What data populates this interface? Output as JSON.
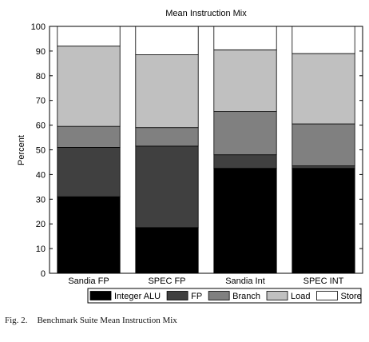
{
  "chart_data": {
    "type": "bar",
    "stacked": true,
    "title": "Mean Instruction Mix",
    "xlabel": "",
    "ylabel": "Percent",
    "ylim": [
      0,
      100
    ],
    "yticks": [
      "0",
      "10",
      "20",
      "30",
      "40",
      "50",
      "60",
      "70",
      "80",
      "90",
      "100"
    ],
    "grid": false,
    "legend_position": "bottom",
    "categories": [
      "Sandia FP",
      "SPEC FP",
      "Sandia Int",
      "SPEC INT"
    ],
    "series": [
      {
        "name": "Integer ALU",
        "color": "#000000",
        "values": [
          31,
          18.5,
          42.5,
          42.5
        ]
      },
      {
        "name": "FP",
        "color": "#404040",
        "values": [
          20,
          33,
          5.5,
          1
        ]
      },
      {
        "name": "Branch",
        "color": "#808080",
        "values": [
          8.5,
          7.5,
          17.5,
          17
        ]
      },
      {
        "name": "Load",
        "color": "#c0c0c0",
        "values": [
          32.5,
          29.5,
          25,
          28.5
        ]
      },
      {
        "name": "Store",
        "color": "#ffffff",
        "values": [
          8,
          11.5,
          9.5,
          11
        ]
      }
    ]
  },
  "caption": {
    "label": "Fig. 2.",
    "text": "Benchmark Suite Mean Instruction Mix"
  }
}
